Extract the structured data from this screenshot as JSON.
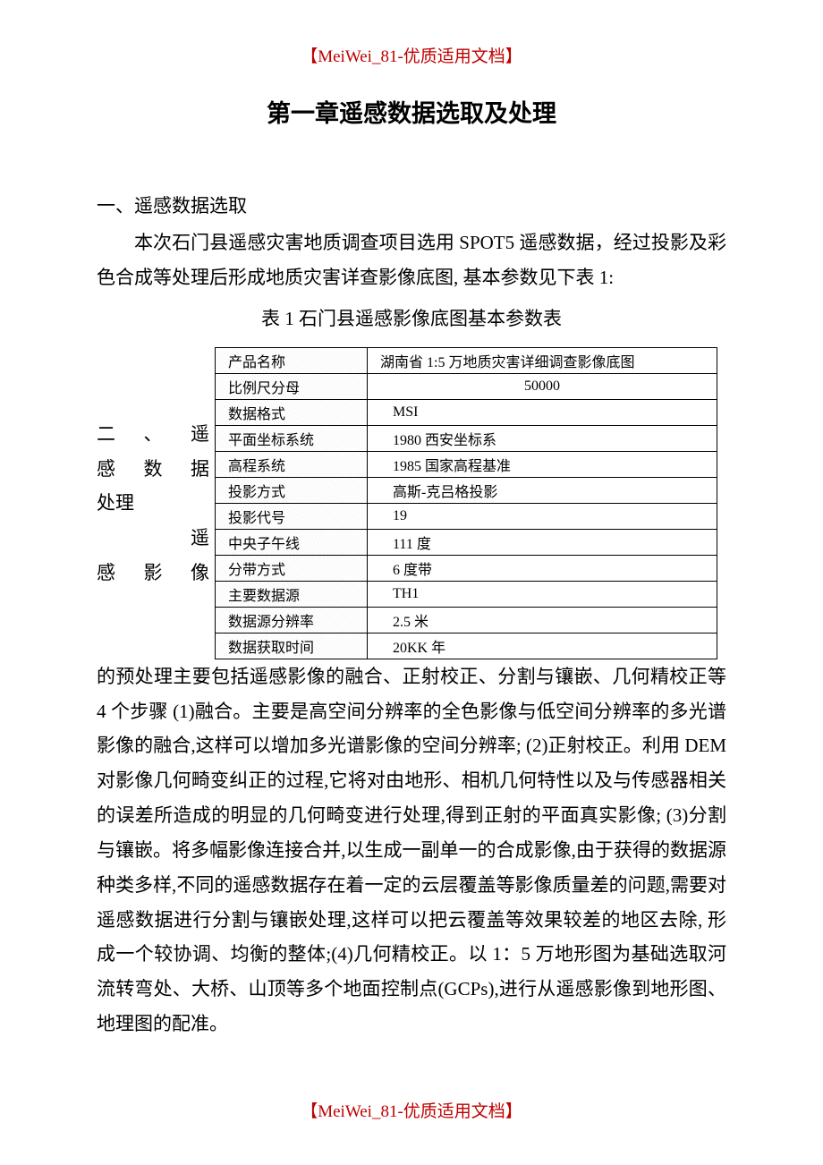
{
  "header": {
    "text": "【MeiWei_81-优质适用文档】"
  },
  "chapter": {
    "title": "第一章遥感数据选取及处理"
  },
  "section1": {
    "heading": "一、遥感数据选取",
    "paragraph": "本次石门县遥感灾害地质调查项目选用 SPOT5 遥感数据，经过投影及彩色合成等处理后形成地质灾害详查影像底图, 基本参数见下表 1:",
    "table_caption": "表 1 石门县遥感影像底图基本参数表"
  },
  "table": {
    "rows": [
      {
        "label": "产品名称",
        "value": "湖南省 1:5 万地质灾害详细调查影像底图"
      },
      {
        "label": "比例尺分母",
        "value": "50000"
      },
      {
        "label": "数据格式",
        "value": "MSI"
      },
      {
        "label": "平面坐标系统",
        "value": "1980 西安坐标系"
      },
      {
        "label": "高程系统",
        "value": "1985 国家高程基准"
      },
      {
        "label": "投影方式",
        "value": "高斯-克吕格投影"
      },
      {
        "label": "投影代号",
        "value": "19"
      },
      {
        "label": "中央子午线",
        "value": "111 度"
      },
      {
        "label": "分带方式",
        "value": "6 度带"
      },
      {
        "label": "主要数据源",
        "value": "TH1"
      },
      {
        "label": "数据源分辨率",
        "value": "2.5 米"
      },
      {
        "label": "数据获取时间",
        "value": "20KK 年"
      }
    ]
  },
  "section2": {
    "side_lines": {
      "l1": "二、遥",
      "l2": "感数据",
      "l3": "处理",
      "l4": "遥",
      "l5": "感影像"
    },
    "paragraph": "的预处理主要包括遥感影像的融合、正射校正、分割与镶嵌、几何精校正等 4 个步骤  (1)融合。主要是高空间分辨率的全色影像与低空间分辨率的多光谱影像的融合,这样可以增加多光谱影像的空间分辨率; (2)正射校正。利用 DEM 对影像几何畸变纠正的过程,它将对由地形、相机几何特性以及与传感器相关的误差所造成的明显的几何畸变进行处理,得到正射的平面真实影像;  (3)分割与镶嵌。将多幅影像连接合并,以生成一副单一的合成影像,由于获得的数据源种类多样,不同的遥感数据存在着一定的云层覆盖等影像质量差的问题,需要对遥感数据进行分割与镶嵌处理,这样可以把云覆盖等效果较差的地区去除, 形成一个较协调、均衡的整体;(4)几何精校正。以 1：5 万地形图为基础选取河流转弯处、大桥、山顶等多个地面控制点(GCPs),进行从遥感影像到地形图、地理图的配准。"
  },
  "footer": {
    "text": "【MeiWei_81-优质适用文档】"
  }
}
